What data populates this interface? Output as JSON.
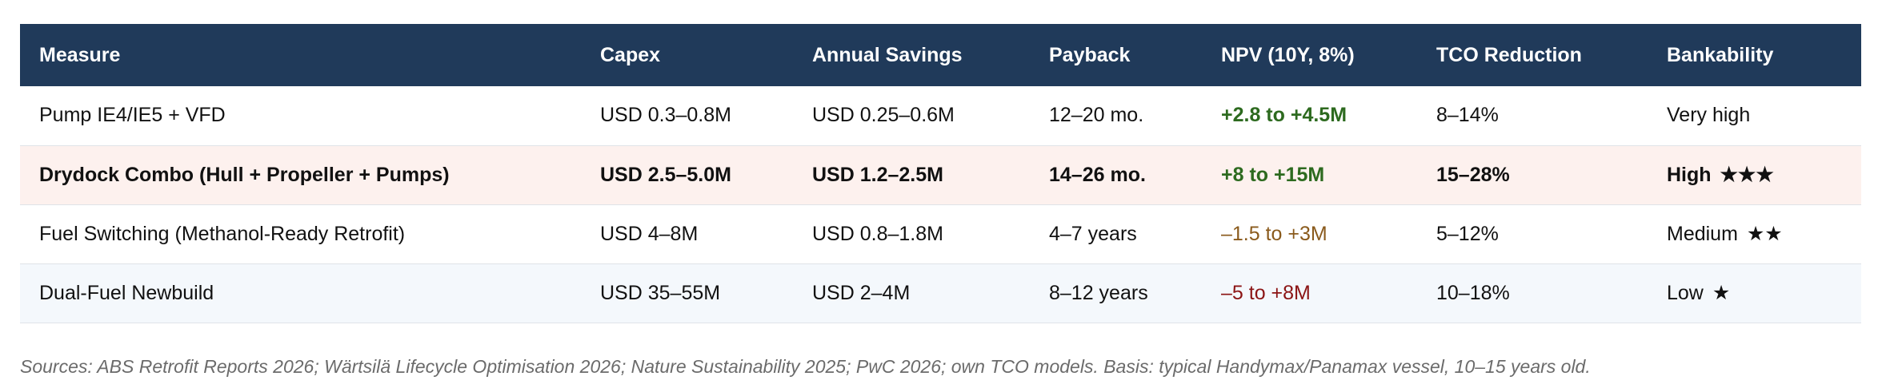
{
  "table": {
    "headers": [
      "Measure",
      "Capex",
      "Annual Savings",
      "Payback",
      "NPV (10Y, 8%)",
      "TCO Reduction",
      "Bankability"
    ],
    "rows": [
      {
        "measure": "Pump IE4/IE5 + VFD",
        "capex": "USD 0.3–0.8M",
        "savings": "USD 0.25–0.6M",
        "payback": "12–20 mo.",
        "npv": "+2.8 to +4.5M",
        "tco": "8–14%",
        "bankability": "Very high",
        "stars": ""
      },
      {
        "measure": "Drydock Combo (Hull + Propeller + Pumps)",
        "capex": "USD 2.5–5.0M",
        "savings": "USD 1.2–2.5M",
        "payback": "14–26 mo.",
        "npv": "+8 to +15M",
        "tco": "15–28%",
        "bankability": "High",
        "stars": "★★★"
      },
      {
        "measure": "Fuel Switching (Methanol-Ready Retrofit)",
        "capex": "USD 4–8M",
        "savings": "USD 0.8–1.8M",
        "payback": "4–7 years",
        "npv": "–1.5 to +3M",
        "tco": "5–12%",
        "bankability": "Medium",
        "stars": "★★"
      },
      {
        "measure": "Dual-Fuel Newbuild",
        "capex": "USD 35–55M",
        "savings": "USD 2–4M",
        "payback": "8–12 years",
        "npv": "–5 to +8M",
        "tco": "10–18%",
        "bankability": "Low",
        "stars": "★"
      }
    ]
  },
  "colors": {
    "header_bg": "#203a5a",
    "npv_positive": "#2d6a1f",
    "npv_mixed": "#8a5a1c",
    "npv_negative": "#8b1414",
    "highlight_row": "#fdf1ee"
  },
  "footer": {
    "source": "Sources: ABS Retrofit Reports 2026; Wärtsilä Lifecycle Optimisation 2026; Nature Sustainability 2025; PwC 2026; own TCO models. Basis: typical Handymax/Panamax vessel, 10–15 years old."
  }
}
